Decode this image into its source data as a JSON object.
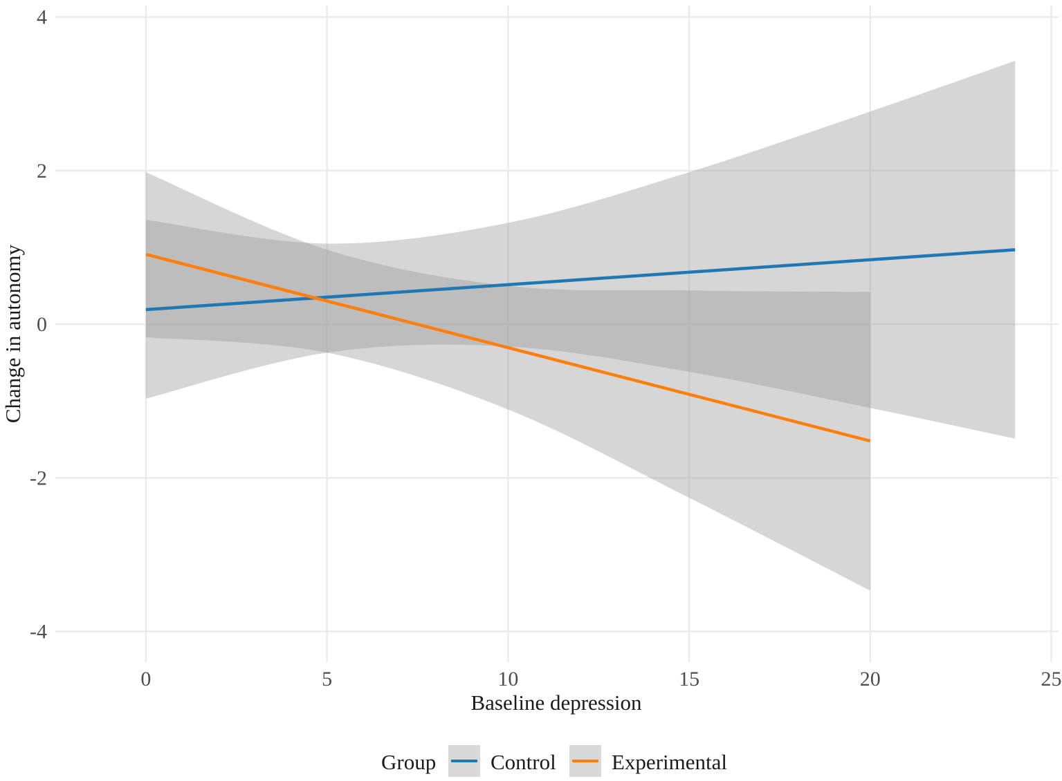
{
  "chart_data": {
    "type": "line",
    "xlabel": "Baseline depression",
    "ylabel": "Change in autonomy",
    "xlim": [
      -2.5,
      25.2
    ],
    "ylim": [
      -4.4,
      4.15
    ],
    "xticks": [
      0,
      5,
      10,
      15,
      20,
      25
    ],
    "xtick_labels": [
      "0",
      "5",
      "10",
      "15",
      "20",
      "25"
    ],
    "yticks": [
      -4,
      -2,
      0,
      2,
      4
    ],
    "ytick_labels": [
      "-4",
      "-2",
      "0",
      "2",
      "4"
    ],
    "grid": true,
    "legend": {
      "title": "Group",
      "position": "bottom",
      "entries": [
        "Control",
        "Experimental"
      ]
    },
    "series": [
      {
        "name": "Control",
        "color": "#1f77b4",
        "line": {
          "x": [
            0,
            24
          ],
          "y": [
            0.19,
            0.97
          ]
        },
        "band": {
          "x": [
            0,
            5,
            10,
            15,
            20,
            24
          ],
          "upper": [
            1.36,
            1.05,
            1.32,
            1.98,
            2.77,
            3.43
          ],
          "lower": [
            -0.97,
            -0.37,
            -0.29,
            -0.62,
            -1.09,
            -1.49
          ]
        }
      },
      {
        "name": "Experimental",
        "color": "#ff7f0e",
        "line": {
          "x": [
            0,
            20
          ],
          "y": [
            0.91,
            -1.52
          ]
        },
        "band": {
          "x": [
            0,
            5,
            10,
            15,
            20
          ],
          "upper": [
            1.98,
            0.97,
            0.5,
            0.44,
            0.42
          ],
          "lower": [
            -0.17,
            -0.37,
            -1.11,
            -2.26,
            -3.47
          ]
        }
      }
    ]
  }
}
